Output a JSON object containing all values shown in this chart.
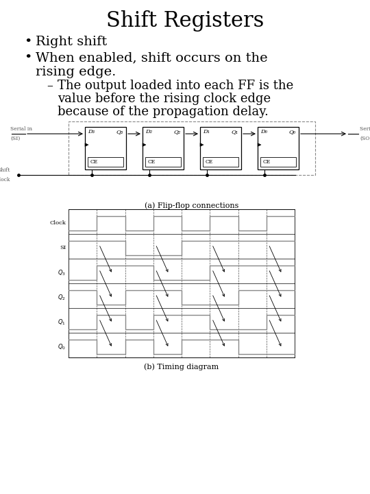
{
  "title": "Shift Registers",
  "bullet1": "Right shift",
  "bullet2_line1": "When enabled, shift occurs on the",
  "bullet2_line2": "rising edge.",
  "sub_line1": "The output loaded into each FF is the",
  "sub_line2": "value before the rising clock edge",
  "sub_line3": "because of the propagation delay.",
  "caption_a": "(a) Flip-flop connections",
  "caption_b": "(b) Timing diagram",
  "bg_color": "#ffffff",
  "title_fontsize": 22,
  "bullet_fontsize": 14,
  "sub_fontsize": 13,
  "caption_fontsize": 8,
  "ff_labels": [
    [
      "D₃",
      "Q₃"
    ],
    [
      "D₂",
      "Q₂"
    ],
    [
      "D₁",
      "Q₁"
    ],
    [
      "D₀",
      "Q₀"
    ]
  ],
  "timing_labels": [
    "Clock",
    "SI",
    "Q₃",
    "Q₂",
    "Q₁",
    "Q₀"
  ],
  "clk_vals": [
    0,
    1,
    0,
    1,
    0,
    1,
    0,
    1
  ],
  "si_vals": [
    1,
    1,
    0,
    0,
    1,
    1,
    1,
    1
  ],
  "q3_vals": [
    0,
    1,
    1,
    0,
    0,
    1,
    1,
    1
  ],
  "q2_vals": [
    1,
    0,
    1,
    1,
    0,
    0,
    1,
    1
  ],
  "q1_vals": [
    0,
    1,
    0,
    1,
    1,
    0,
    0,
    1
  ],
  "q0_vals": [
    1,
    0,
    1,
    0,
    1,
    1,
    0,
    0
  ]
}
